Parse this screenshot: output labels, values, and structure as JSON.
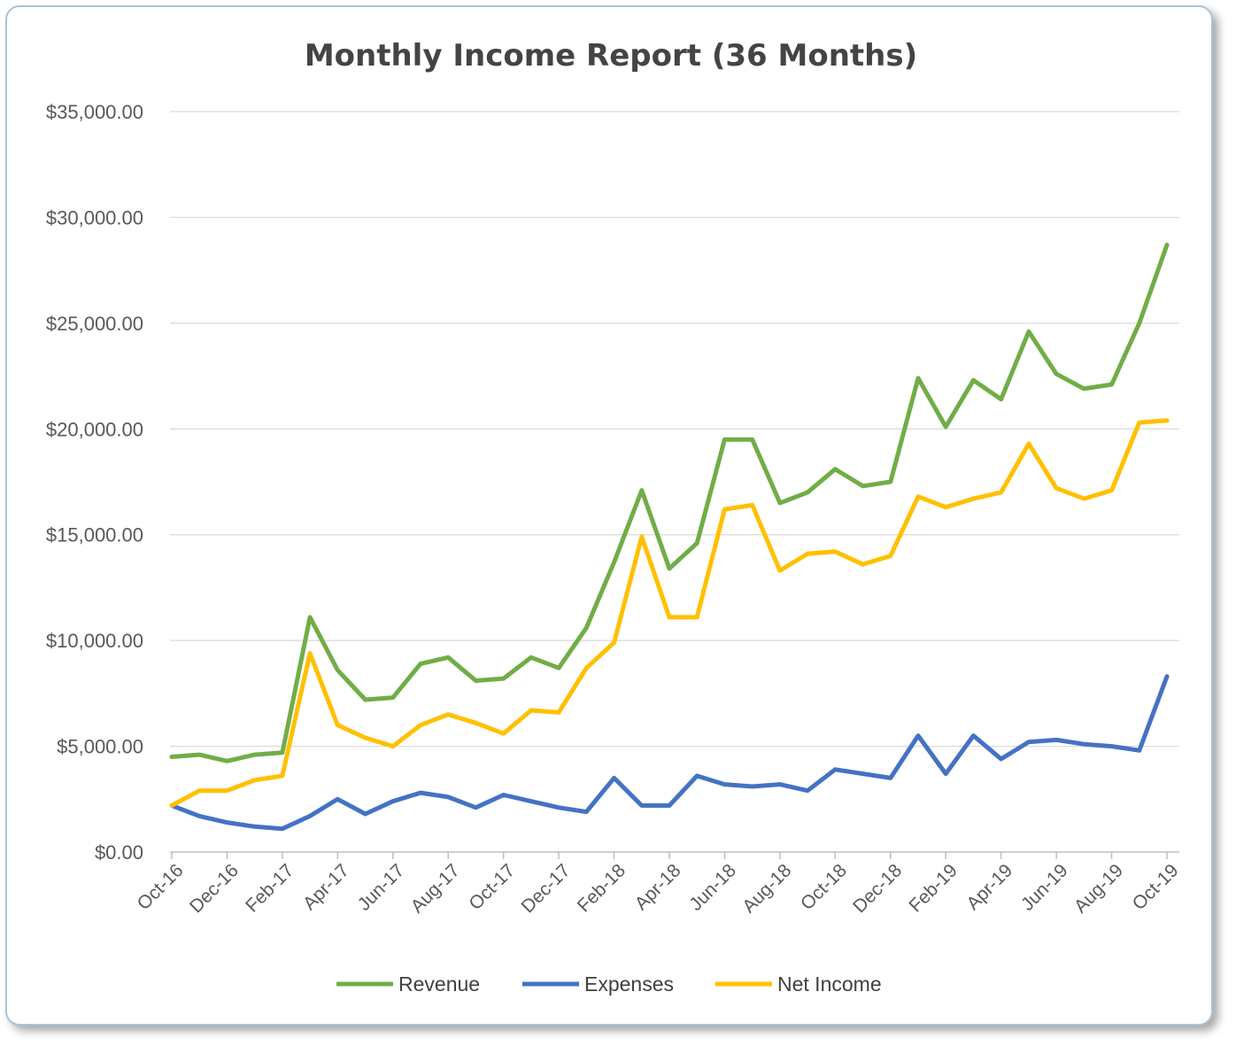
{
  "chart_data": {
    "type": "line",
    "title": "Monthly Income Report (36 Months)",
    "xlabel": "",
    "ylabel": "",
    "ylim": [
      0,
      35000
    ],
    "y_ticks": [
      "$0.00",
      "$5,000.00",
      "$10,000.00",
      "$15,000.00",
      "$20,000.00",
      "$25,000.00",
      "$30,000.00",
      "$35,000.00"
    ],
    "y_tick_values": [
      0,
      5000,
      10000,
      15000,
      20000,
      25000,
      30000,
      35000
    ],
    "grid": true,
    "legend_position": "bottom",
    "categories": [
      "Oct-16",
      "Nov-16",
      "Dec-16",
      "Jan-17",
      "Feb-17",
      "Mar-17",
      "Apr-17",
      "May-17",
      "Jun-17",
      "Jul-17",
      "Aug-17",
      "Sep-17",
      "Oct-17",
      "Nov-17",
      "Dec-17",
      "Jan-18",
      "Feb-18",
      "Mar-18",
      "Apr-18",
      "May-18",
      "Jun-18",
      "Jul-18",
      "Aug-18",
      "Sep-18",
      "Oct-18",
      "Nov-18",
      "Dec-18",
      "Jan-19",
      "Feb-19",
      "Mar-19",
      "Apr-19",
      "May-19",
      "Jun-19",
      "Jul-19",
      "Aug-19",
      "Sep-19",
      "Oct-19"
    ],
    "x_tick_labels": [
      "Oct-16",
      "Dec-16",
      "Feb-17",
      "Apr-17",
      "Jun-17",
      "Aug-17",
      "Oct-17",
      "Dec-17",
      "Feb-18",
      "Apr-18",
      "Jun-18",
      "Aug-18",
      "Oct-18",
      "Dec-18",
      "Feb-19",
      "Apr-19",
      "Jun-19",
      "Aug-19",
      "Oct-19"
    ],
    "series": [
      {
        "name": "Revenue",
        "color": "#70ad47",
        "values": [
          4500,
          4600,
          4300,
          4600,
          4700,
          11100,
          8600,
          7200,
          7300,
          8900,
          9200,
          8100,
          8200,
          9200,
          8700,
          10600,
          13700,
          17100,
          13400,
          14600,
          19500,
          19500,
          16500,
          17000,
          18100,
          17300,
          17500,
          22400,
          20100,
          22300,
          21400,
          24600,
          22600,
          21900,
          22100,
          25000,
          28700
        ]
      },
      {
        "name": "Expenses",
        "color": "#4472c4",
        "values": [
          2200,
          1700,
          1400,
          1200,
          1100,
          1700,
          2500,
          1800,
          2400,
          2800,
          2600,
          2100,
          2700,
          2400,
          2100,
          1900,
          3500,
          2200,
          2200,
          3600,
          3200,
          3100,
          3200,
          2900,
          3900,
          3700,
          3500,
          5500,
          3700,
          5500,
          4400,
          5200,
          5300,
          5100,
          5000,
          4800,
          8300
        ]
      },
      {
        "name": "Net Income",
        "color": "#ffc000",
        "values": [
          2200,
          2900,
          2900,
          3400,
          3600,
          9400,
          6000,
          5400,
          5000,
          6000,
          6500,
          6100,
          5600,
          6700,
          6600,
          8700,
          9900,
          14900,
          11100,
          11100,
          16200,
          16400,
          13300,
          14100,
          14200,
          13600,
          14000,
          16800,
          16300,
          16700,
          17000,
          19300,
          17200,
          16700,
          17100,
          20300,
          20400
        ]
      }
    ]
  }
}
